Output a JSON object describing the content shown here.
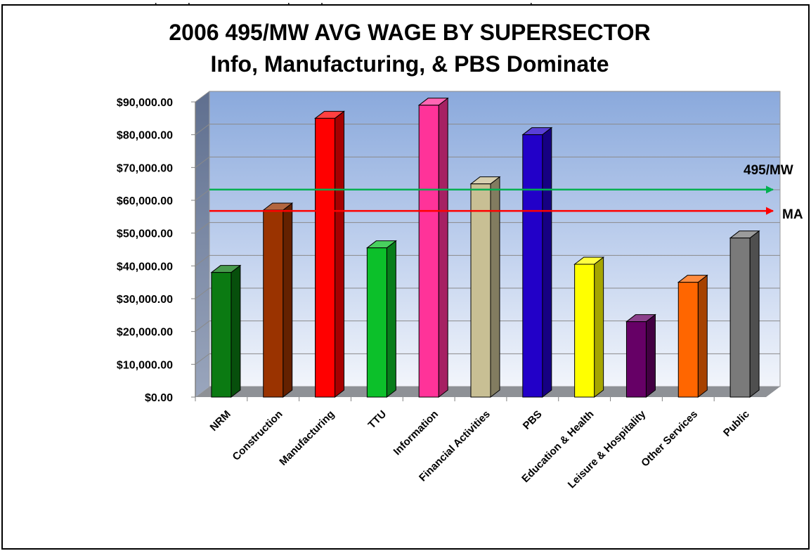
{
  "top_strip_text": "________________, ____, ______________, ____, ___________________ ___________, ___________________",
  "chart_data": {
    "type": "bar",
    "title": "2006 495/MW AVG WAGE BY SUPERSECTOR",
    "subtitle": "Info, Manufacturing, & PBS Dominate",
    "xlabel": "",
    "ylabel": "",
    "ylim": [
      0,
      90000
    ],
    "ytick_labels": [
      "$0.00",
      "$10,000.00",
      "$20,000.00",
      "$30,000.00",
      "$40,000.00",
      "$50,000.00",
      "$60,000.00",
      "$70,000.00",
      "$80,000.00",
      "$90,000.00"
    ],
    "categories": [
      "NRM",
      "Construction",
      "Manufacturing",
      "TTU",
      "Information",
      "Financial Activities",
      "PBS",
      "Education & Health",
      "Leisure & Hospitality",
      "Other Services",
      "Public"
    ],
    "values": [
      38000,
      57000,
      85000,
      45500,
      89000,
      65000,
      80000,
      40500,
      23000,
      35000,
      48500
    ],
    "bar_colors": [
      "#0b7a12",
      "#9a3300",
      "#ff0000",
      "#0cc02a",
      "#ff3399",
      "#c8bf94",
      "#2200c8",
      "#ffff00",
      "#660066",
      "#ff6600",
      "#7a7a7a"
    ],
    "reference_lines": [
      {
        "name": "495/MW",
        "value": 61500,
        "color": "#00b050"
      },
      {
        "name": "MA",
        "value": 55000,
        "color": "#ff0000"
      }
    ],
    "grid": true,
    "legend": "none"
  }
}
